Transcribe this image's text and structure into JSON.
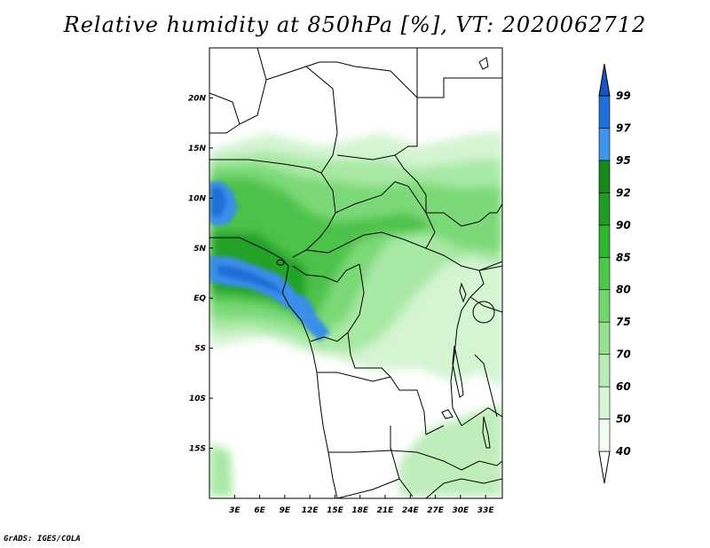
{
  "title": "Relative humidity at 850hPa [%], VT: 2020062712",
  "credit": "GrADS: IGES/COLA",
  "map": {
    "lon_ticks": [
      "3E",
      "6E",
      "9E",
      "12E",
      "15E",
      "18E",
      "21E",
      "24E",
      "27E",
      "30E",
      "33E"
    ],
    "lat_ticks": [
      "20N",
      "15N",
      "10N",
      "5N",
      "EQ",
      "5S",
      "10S",
      "15S"
    ],
    "extent": {
      "lon_min": 0,
      "lon_max": 35,
      "lat_min": -20,
      "lat_max": 25
    }
  },
  "colorbar": {
    "labels": [
      "40",
      "50",
      "60",
      "70",
      "75",
      "80",
      "85",
      "90",
      "92",
      "95",
      "97",
      "99"
    ],
    "colors": [
      "#f0fcf0",
      "#d8f5d6",
      "#b8edb5",
      "#96e291",
      "#71d66c",
      "#4cc84a",
      "#2fb52f",
      "#1d9e22",
      "#158a1a",
      "#3e96ec",
      "#1f6fd8",
      "#1a54c4"
    ]
  }
}
